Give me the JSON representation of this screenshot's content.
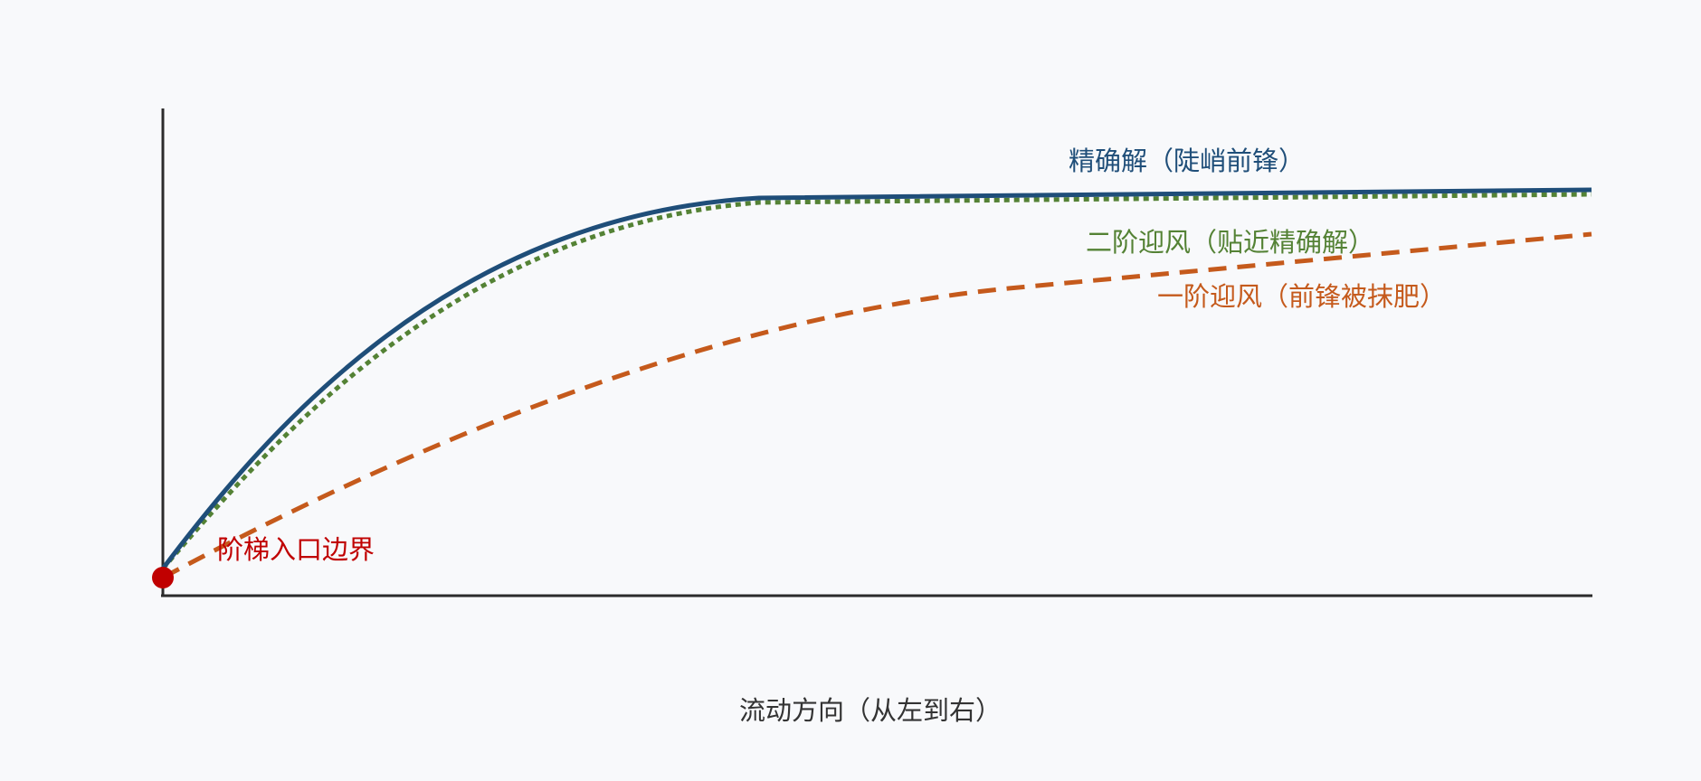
{
  "labels": {
    "exact": "精确解（陡峭前锋）",
    "second_order": "二阶迎风（贴近精确解）",
    "first_order": "一阶迎风（前锋被抹肥）",
    "boundary": "阶梯入口边界"
  },
  "x_axis_label": "流动方向（从左到右）"
}
